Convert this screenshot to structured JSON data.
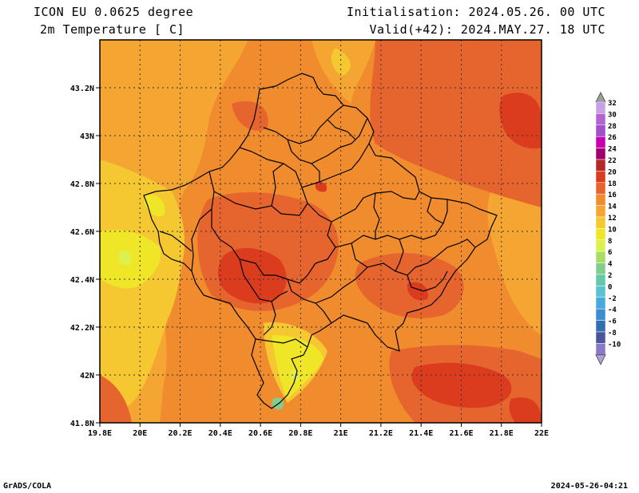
{
  "header": {
    "left_line1": "ICON EU 0.0625 degree",
    "left_line2": "2m Temperature [ C]",
    "right_line1": "Initialisation: 2024.05.26. 00 UTC",
    "right_line2": "Valid(+42): 2024.MAY.27. 18 UTC"
  },
  "axes": {
    "lon_ticks": [
      "19.8E",
      "20E",
      "20.2E",
      "20.4E",
      "20.6E",
      "20.8E",
      "21E",
      "21.2E",
      "21.4E",
      "21.6E",
      "21.8E",
      "22E"
    ],
    "lat_ticks": [
      "43.2N",
      "43N",
      "42.8N",
      "42.6N",
      "42.4N",
      "42.2N",
      "42N",
      "41.8N"
    ],
    "lon_range": [
      19.8,
      22.0
    ],
    "lat_range": [
      41.8,
      43.4
    ]
  },
  "legend": {
    "unit": "C",
    "labels": [
      "32",
      "30",
      "28",
      "26",
      "24",
      "22",
      "20",
      "18",
      "16",
      "14",
      "12",
      "10",
      "8",
      "6",
      "4",
      "2",
      "0",
      "-2",
      "-4",
      "-6",
      "-8",
      "-10"
    ],
    "colors": [
      "#c8a0e6",
      "#b464d2",
      "#a050c8",
      "#c800b4",
      "#a0006e",
      "#b42828",
      "#dc3c1e",
      "#e6642d",
      "#f08c2d",
      "#f5a532",
      "#f5c832",
      "#f0e628",
      "#dcf050",
      "#aadc64",
      "#82cd8c",
      "#64c8aa",
      "#5ac3d2",
      "#46aadc",
      "#3c8cd2",
      "#326eb4",
      "#4b559b",
      "#8c78c8"
    ]
  },
  "footer": {
    "left": "GrADS/COLA",
    "right": "2024-05-26-04:21"
  },
  "colors": {
    "c20": "#dc3c1e",
    "c18": "#e6642d",
    "c16": "#f08c2d",
    "c14": "#f5a532",
    "c12": "#f5c832",
    "c10": "#f0e628",
    "c8": "#dcf050",
    "c4": "#82cd8c"
  }
}
